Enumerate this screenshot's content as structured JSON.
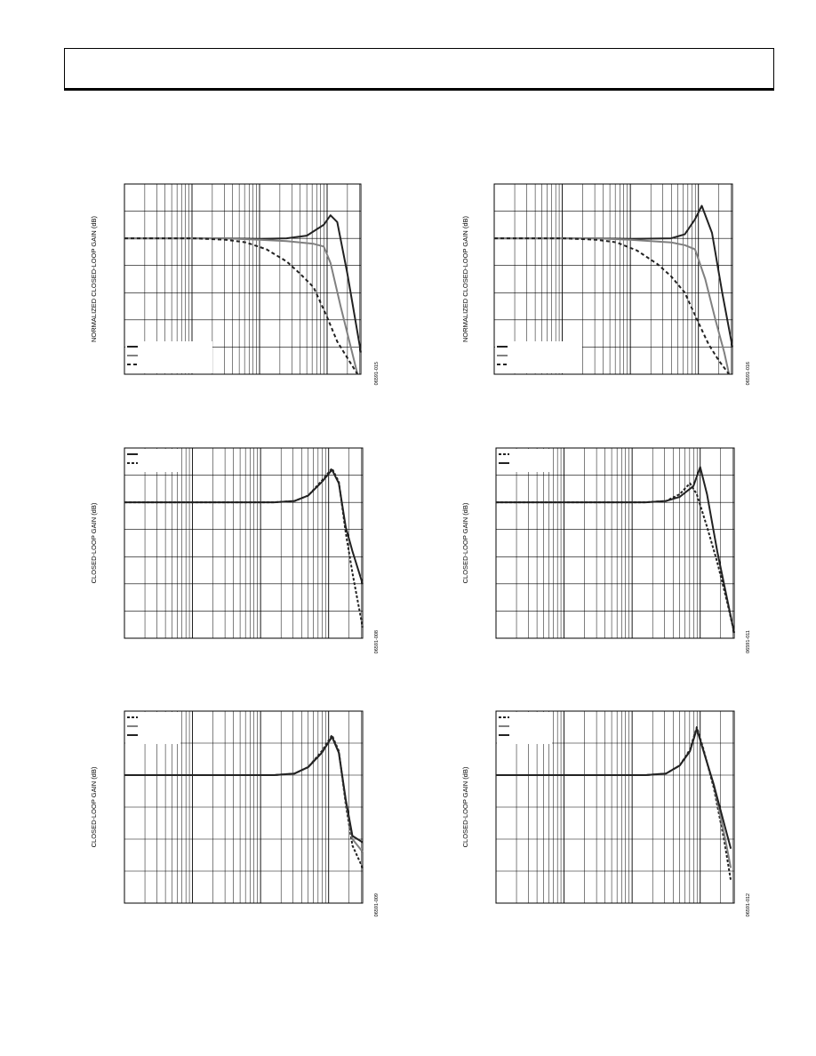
{
  "header": {
    "title": ""
  },
  "chart_data": [
    {
      "id": "p1",
      "type": "line",
      "ylabel": "NORMALIZED CLOSED-LOOP GAIN (dB)",
      "figure_id": "06591-015",
      "x_scale": "log",
      "xlim": [
        0,
        3.5
      ],
      "ylim": [
        -5,
        2
      ],
      "grid": true,
      "legend_position": "bottom-left",
      "series": [
        {
          "color": "#222222",
          "dash": "",
          "x": [
            0,
            1.5,
            2.0,
            2.4,
            2.7,
            2.95,
            3.05,
            3.15,
            3.3,
            3.5
          ],
          "y": [
            0,
            0,
            -0.02,
            0,
            0.1,
            0.5,
            0.85,
            0.6,
            -1.3,
            -4.2
          ]
        },
        {
          "color": "#808080",
          "dash": "",
          "x": [
            0,
            1.5,
            2.0,
            2.4,
            2.8,
            2.95,
            3.05,
            3.2,
            3.35,
            3.45
          ],
          "y": [
            0,
            0,
            -0.05,
            -0.1,
            -0.2,
            -0.3,
            -0.9,
            -2.5,
            -4.0,
            -5.0
          ]
        },
        {
          "color": "#222222",
          "dash": "4,3",
          "x": [
            0,
            1.0,
            1.5,
            1.8,
            2.1,
            2.4,
            2.6,
            2.8,
            3.0,
            3.15,
            3.3,
            3.45
          ],
          "y": [
            0,
            0,
            -0.05,
            -0.15,
            -0.4,
            -0.85,
            -1.3,
            -1.8,
            -2.9,
            -3.8,
            -4.4,
            -5.0
          ]
        }
      ]
    },
    {
      "id": "p2",
      "type": "line",
      "ylabel": "NORMALIZED CLOSED-LOOP GAIN (dB)",
      "figure_id": "06591-016",
      "x_scale": "log",
      "xlim": [
        0,
        3.5
      ],
      "ylim": [
        -5,
        2
      ],
      "grid": true,
      "legend_position": "bottom-left",
      "series": [
        {
          "color": "#222222",
          "dash": "",
          "x": [
            0,
            1.5,
            2.0,
            2.6,
            2.8,
            2.95,
            3.05,
            3.2,
            3.35,
            3.5
          ],
          "y": [
            0,
            0,
            -0.02,
            0,
            0.15,
            0.7,
            1.2,
            0.2,
            -2.0,
            -4.0
          ]
        },
        {
          "color": "#808080",
          "dash": "",
          "x": [
            0,
            1.5,
            2.0,
            2.6,
            2.8,
            2.95,
            3.1,
            3.25,
            3.38,
            3.45
          ],
          "y": [
            0,
            0,
            -0.05,
            -0.15,
            -0.25,
            -0.4,
            -1.5,
            -3.0,
            -4.2,
            -5.0
          ]
        },
        {
          "color": "#222222",
          "dash": "4,3",
          "x": [
            0,
            1.0,
            1.5,
            1.8,
            2.1,
            2.4,
            2.6,
            2.8,
            3.0,
            3.15,
            3.3,
            3.45
          ],
          "y": [
            0,
            0,
            -0.05,
            -0.15,
            -0.45,
            -0.95,
            -1.4,
            -2.0,
            -3.1,
            -3.9,
            -4.5,
            -5.0
          ]
        }
      ]
    },
    {
      "id": "p3",
      "type": "line",
      "ylabel": "CLOSED-LOOP GAIN (dB)",
      "figure_id": "06591-008",
      "x_scale": "log",
      "xlim": [
        0,
        3.5
      ],
      "ylim": [
        -5,
        2
      ],
      "grid": true,
      "legend_position": "top-left",
      "series": [
        {
          "color": "#222222",
          "dash": "",
          "x": [
            0,
            1.5,
            2.2,
            2.5,
            2.7,
            2.9,
            3.05,
            3.15,
            3.25,
            3.35,
            3.5
          ],
          "y": [
            0,
            0,
            0,
            0.05,
            0.25,
            0.75,
            1.2,
            0.7,
            -0.9,
            -1.8,
            -3.0
          ]
        },
        {
          "color": "#222222",
          "dash": "3,2",
          "x": [
            0,
            1.5,
            2.2,
            2.5,
            2.7,
            2.9,
            3.05,
            3.15,
            3.25,
            3.35,
            3.5
          ],
          "y": [
            0,
            0,
            0,
            0.05,
            0.25,
            0.8,
            1.25,
            0.75,
            -1.1,
            -2.6,
            -4.6
          ]
        }
      ]
    },
    {
      "id": "p4",
      "type": "line",
      "ylabel": "CLOSED-LOOP GAIN (dB)",
      "figure_id": "06591-011",
      "x_scale": "log",
      "xlim": [
        0,
        3.5
      ],
      "ylim": [
        -5,
        2
      ],
      "grid": true,
      "legend_position": "top-left",
      "series": [
        {
          "color": "#222222",
          "dash": "3,2",
          "x": [
            0,
            1.5,
            2.2,
            2.5,
            2.7,
            2.85,
            2.95,
            3.1,
            3.25,
            3.4,
            3.5
          ],
          "y": [
            0,
            0,
            0,
            0.05,
            0.3,
            0.7,
            0.3,
            -0.9,
            -2.2,
            -3.7,
            -4.8
          ]
        },
        {
          "color": "#222222",
          "dash": "",
          "x": [
            0,
            1.5,
            2.2,
            2.5,
            2.7,
            2.9,
            3.0,
            3.1,
            3.25,
            3.4,
            3.5
          ],
          "y": [
            0,
            0,
            0,
            0.05,
            0.2,
            0.6,
            1.3,
            0.3,
            -1.8,
            -3.6,
            -4.8
          ]
        }
      ]
    },
    {
      "id": "p5",
      "type": "line",
      "ylabel": "CLOSED-LOOP GAIN (dB)",
      "figure_id": "06591-009",
      "x_scale": "log",
      "xlim": [
        0,
        3.5
      ],
      "ylim": [
        -4,
        2
      ],
      "grid": true,
      "legend_position": "top-left",
      "series": [
        {
          "color": "#222222",
          "dash": "3,2",
          "x": [
            0,
            1.5,
            2.2,
            2.5,
            2.7,
            2.9,
            3.05,
            3.15,
            3.25,
            3.35,
            3.5
          ],
          "y": [
            0,
            0,
            0,
            0.05,
            0.25,
            0.75,
            1.25,
            0.75,
            -0.9,
            -2.2,
            -2.9
          ]
        },
        {
          "color": "#808080",
          "dash": "",
          "x": [
            0,
            1.5,
            2.2,
            2.5,
            2.7,
            2.9,
            3.05,
            3.15,
            3.25,
            3.35,
            3.5
          ],
          "y": [
            0,
            0,
            0,
            0.05,
            0.25,
            0.7,
            1.2,
            0.7,
            -0.8,
            -2.0,
            -2.4
          ]
        },
        {
          "color": "#222222",
          "dash": "",
          "x": [
            0,
            1.5,
            2.2,
            2.5,
            2.7,
            2.9,
            3.05,
            3.15,
            3.25,
            3.35,
            3.5
          ],
          "y": [
            0,
            0,
            0,
            0.05,
            0.25,
            0.7,
            1.2,
            0.7,
            -0.75,
            -1.9,
            -2.1
          ]
        }
      ]
    },
    {
      "id": "p6",
      "type": "line",
      "ylabel": "CLOSED-LOOP GAIN (dB)",
      "figure_id": "06591-012",
      "x_scale": "log",
      "xlim": [
        0,
        3.5
      ],
      "ylim": [
        -4,
        2
      ],
      "grid": true,
      "legend_position": "top-left",
      "series": [
        {
          "color": "#222222",
          "dash": "3,2",
          "x": [
            0,
            1.5,
            2.2,
            2.5,
            2.7,
            2.85,
            2.95,
            3.05,
            3.2,
            3.35,
            3.45
          ],
          "y": [
            0,
            0,
            0,
            0.05,
            0.3,
            0.8,
            1.5,
            0.8,
            -0.4,
            -2.0,
            -3.3
          ]
        },
        {
          "color": "#808080",
          "dash": "",
          "x": [
            0,
            1.5,
            2.2,
            2.5,
            2.7,
            2.85,
            2.95,
            3.05,
            3.2,
            3.35,
            3.45
          ],
          "y": [
            0,
            0,
            0,
            0.05,
            0.3,
            0.75,
            1.45,
            0.75,
            -0.3,
            -1.8,
            -2.9
          ]
        },
        {
          "color": "#222222",
          "dash": "",
          "x": [
            0,
            1.5,
            2.2,
            2.5,
            2.7,
            2.85,
            2.95,
            3.05,
            3.2,
            3.35,
            3.45
          ],
          "y": [
            0,
            0,
            0,
            0.05,
            0.3,
            0.75,
            1.45,
            0.75,
            -0.3,
            -1.5,
            -2.3
          ]
        }
      ]
    }
  ]
}
